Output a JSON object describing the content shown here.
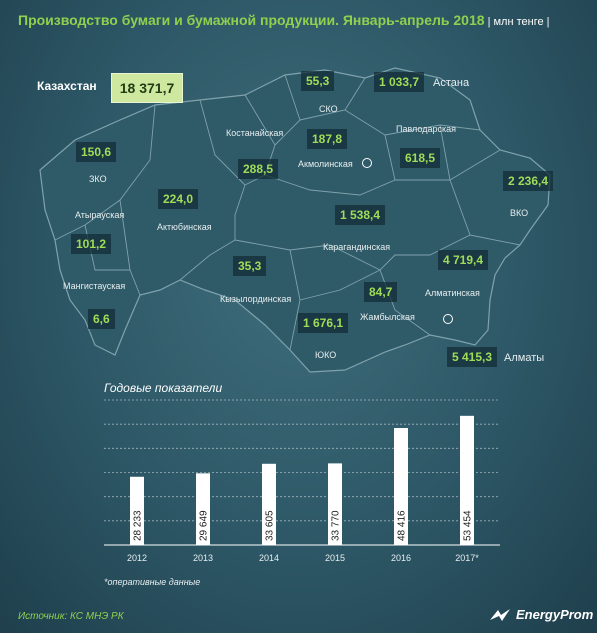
{
  "title": "Производство бумаги и бумажной продукции. Январь-апрель 2018",
  "unit": " | млн тенге |",
  "kazakhstan": {
    "label": "Казахстан",
    "value": "18 371,7"
  },
  "regions": {
    "sko": {
      "name": "СКО",
      "value": "55,3"
    },
    "astana": {
      "name": "Астана",
      "value": "1 033,7"
    },
    "pavlodar": {
      "name": "Павлодарская",
      "value": "618,5"
    },
    "kostanay": {
      "name": "Костанайская",
      "value": "288,5"
    },
    "akmola": {
      "name": "Акмолинская",
      "value": "187,8"
    },
    "zko": {
      "name": "ЗКО",
      "value": "150,6"
    },
    "vko": {
      "name": "ВКО",
      "value": "2 236,4"
    },
    "aktobe": {
      "name": "Актюбинская",
      "value": "224,0"
    },
    "atyrau": {
      "name": "Атырауская",
      "value": "101,2"
    },
    "karaganda": {
      "name": "Карагандинская",
      "value": "1 538,4"
    },
    "kyzylorda": {
      "name": "Кызылординская",
      "value": "35,3"
    },
    "almaty_obl": {
      "name": "Алматинская",
      "value": "4 719,4"
    },
    "mangistau": {
      "name": "Мангистауская",
      "value": "6,6"
    },
    "zhambyl": {
      "name": "Жамбылская",
      "value": "84,7"
    },
    "uko": {
      "name": "ЮКО",
      "value": "1 676,1"
    },
    "almaty": {
      "name": "Алматы",
      "value": "5 415,3"
    }
  },
  "chart_data": {
    "type": "bar",
    "title": "Годовые показатели",
    "categories": [
      "2012",
      "2013",
      "2014",
      "2015",
      "2016",
      "2017*"
    ],
    "values": [
      28233,
      29649,
      33605,
      33770,
      48416,
      53454
    ],
    "value_labels": [
      "28 233",
      "29 649",
      "33 605",
      "33 770",
      "48 416",
      "53 454"
    ],
    "grid": true
  },
  "note": "*оперативные данные",
  "source": "Источник: КС МНЭ РК",
  "logo": "EnergyProm",
  "colors": {
    "accent": "#8fd14f",
    "map_fill": "#2f5a67",
    "bar": "#ffffff"
  }
}
